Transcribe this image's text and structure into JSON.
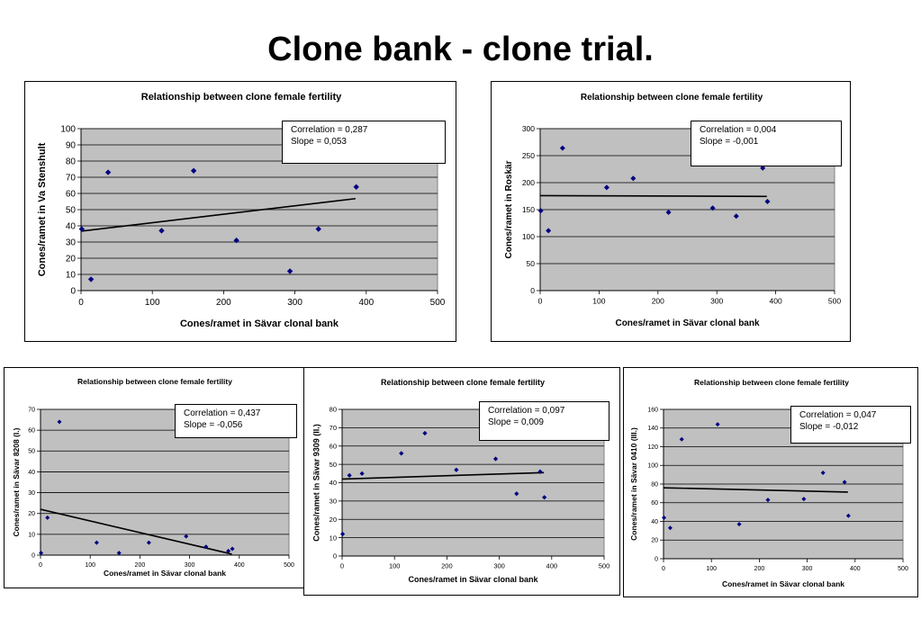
{
  "page": {
    "title": "Clone bank - clone trial."
  },
  "colors": {
    "plot_bg": "#c0c0c0",
    "marker": "#000080",
    "trend": "#000000",
    "grid": "#000000"
  },
  "chart_data": [
    {
      "type": "scatter",
      "title": "Relationship between clone female fertility",
      "xlabel": "Cones/ramet in Sävar clonal bank",
      "ylabel": "Cones/ramet in Va Stenshult",
      "xlim": [
        0,
        500
      ],
      "xticks": [
        0,
        100,
        200,
        300,
        400,
        500
      ],
      "ylim": [
        0,
        100
      ],
      "yticks": [
        0,
        10,
        20,
        30,
        40,
        50,
        60,
        70,
        80,
        90,
        100
      ],
      "grid": true,
      "points": [
        [
          1,
          38
        ],
        [
          14,
          7
        ],
        [
          38,
          73
        ],
        [
          113,
          37
        ],
        [
          158,
          74
        ],
        [
          218,
          31
        ],
        [
          293,
          12
        ],
        [
          333,
          38
        ],
        [
          386,
          64
        ]
      ],
      "trendline": [
        [
          0,
          36.7
        ],
        [
          385,
          56.8
        ]
      ],
      "stats": {
        "correlation": "Correlation = 0,287",
        "slope": "Slope = 0,053"
      }
    },
    {
      "type": "scatter",
      "title": "Relationship between clone female fertility",
      "xlabel": "Cones/ramet in Sävar clonal bank",
      "ylabel": "Cones/ramet in Roskär",
      "xlim": [
        0,
        500
      ],
      "xticks": [
        0,
        100,
        200,
        300,
        400,
        500
      ],
      "ylim": [
        0,
        300
      ],
      "yticks": [
        0,
        50,
        100,
        150,
        200,
        250,
        300
      ],
      "grid": true,
      "points": [
        [
          1,
          148
        ],
        [
          14,
          111
        ],
        [
          38,
          264
        ],
        [
          113,
          191
        ],
        [
          158,
          208
        ],
        [
          218,
          145
        ],
        [
          293,
          153
        ],
        [
          333,
          138
        ],
        [
          378,
          227
        ],
        [
          386,
          165
        ]
      ],
      "trendline": [
        [
          0,
          176
        ],
        [
          385,
          174.5
        ]
      ],
      "stats": {
        "correlation": "Correlation = 0,004",
        "slope": "Slope = -0,001"
      }
    },
    {
      "type": "scatter",
      "title": "Relationship between clone female fertility",
      "xlabel": "Cones/ramet in Sävar clonal bank",
      "ylabel": "Cones/ramet in Sävar 8208 (I.)",
      "xlim": [
        0,
        500
      ],
      "xticks": [
        0,
        100,
        200,
        300,
        400,
        500
      ],
      "ylim": [
        0,
        70
      ],
      "yticks": [
        0,
        10,
        20,
        30,
        40,
        50,
        60,
        70
      ],
      "grid": true,
      "points": [
        [
          1,
          1
        ],
        [
          14,
          18
        ],
        [
          38,
          64
        ],
        [
          113,
          6
        ],
        [
          158,
          1
        ],
        [
          218,
          6
        ],
        [
          293,
          9
        ],
        [
          333,
          4
        ],
        [
          378,
          2
        ],
        [
          386,
          3
        ]
      ],
      "trendline": [
        [
          0,
          22
        ],
        [
          385,
          0.5
        ]
      ],
      "stats": {
        "correlation": "Correlation = 0,437",
        "slope": "Slope = -0,056"
      }
    },
    {
      "type": "scatter",
      "title": "Relationship between clone female fertility",
      "xlabel": "Cones/ramet in Sävar clonal bank",
      "ylabel": "Cones/ramet in Sävar 9309 (II.)",
      "xlim": [
        0,
        500
      ],
      "xticks": [
        0,
        100,
        200,
        300,
        400,
        500
      ],
      "ylim": [
        0,
        80
      ],
      "yticks": [
        0,
        10,
        20,
        30,
        40,
        50,
        60,
        70,
        80
      ],
      "grid": true,
      "points": [
        [
          1,
          12
        ],
        [
          14,
          44
        ],
        [
          38,
          45
        ],
        [
          113,
          56
        ],
        [
          158,
          67
        ],
        [
          218,
          47
        ],
        [
          293,
          53
        ],
        [
          333,
          34
        ],
        [
          378,
          46
        ],
        [
          386,
          32
        ]
      ],
      "trendline": [
        [
          0,
          42
        ],
        [
          385,
          45.5
        ]
      ],
      "stats": {
        "correlation": "Correlation = 0,097",
        "slope": "Slope = 0,009"
      }
    },
    {
      "type": "scatter",
      "title": "Relationship between clone female fertility",
      "xlabel": "Cones/ramet in Sävar clonal bank",
      "ylabel": "Cones/ramet in Sävar 0410 (III.)",
      "xlim": [
        0,
        500
      ],
      "xticks": [
        0,
        100,
        200,
        300,
        400,
        500
      ],
      "ylim": [
        0,
        160
      ],
      "yticks": [
        0,
        20,
        40,
        60,
        80,
        100,
        120,
        140,
        160
      ],
      "grid": true,
      "points": [
        [
          1,
          44
        ],
        [
          14,
          33
        ],
        [
          38,
          128
        ],
        [
          113,
          144
        ],
        [
          158,
          37
        ],
        [
          218,
          63
        ],
        [
          293,
          64
        ],
        [
          333,
          92
        ],
        [
          378,
          82
        ],
        [
          386,
          46
        ]
      ],
      "trendline": [
        [
          0,
          76
        ],
        [
          385,
          71.4
        ]
      ],
      "stats": {
        "correlation": "Correlation = 0,047",
        "slope": "Slope = -0,012"
      }
    }
  ]
}
